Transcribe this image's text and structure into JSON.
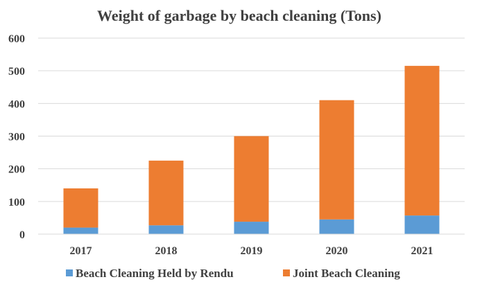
{
  "chart_data": {
    "type": "bar",
    "stacked": true,
    "title": "Weight of garbage by beach cleaning (Tons)",
    "categories": [
      "2017",
      "2018",
      "2019",
      "2020",
      "2021"
    ],
    "series": [
      {
        "name": "Beach Cleaning Held by Rendu",
        "values": [
          20,
          27,
          38,
          45,
          57
        ],
        "color": "#5b9bd5"
      },
      {
        "name": "Joint Beach Cleaning",
        "values": [
          120,
          198,
          262,
          365,
          458
        ],
        "color": "#ed7d31"
      }
    ],
    "ylim": [
      0,
      600
    ],
    "yticks": [
      "0",
      "100",
      "200",
      "300",
      "400",
      "500",
      "600"
    ],
    "grid": true,
    "legend": "bottom"
  }
}
